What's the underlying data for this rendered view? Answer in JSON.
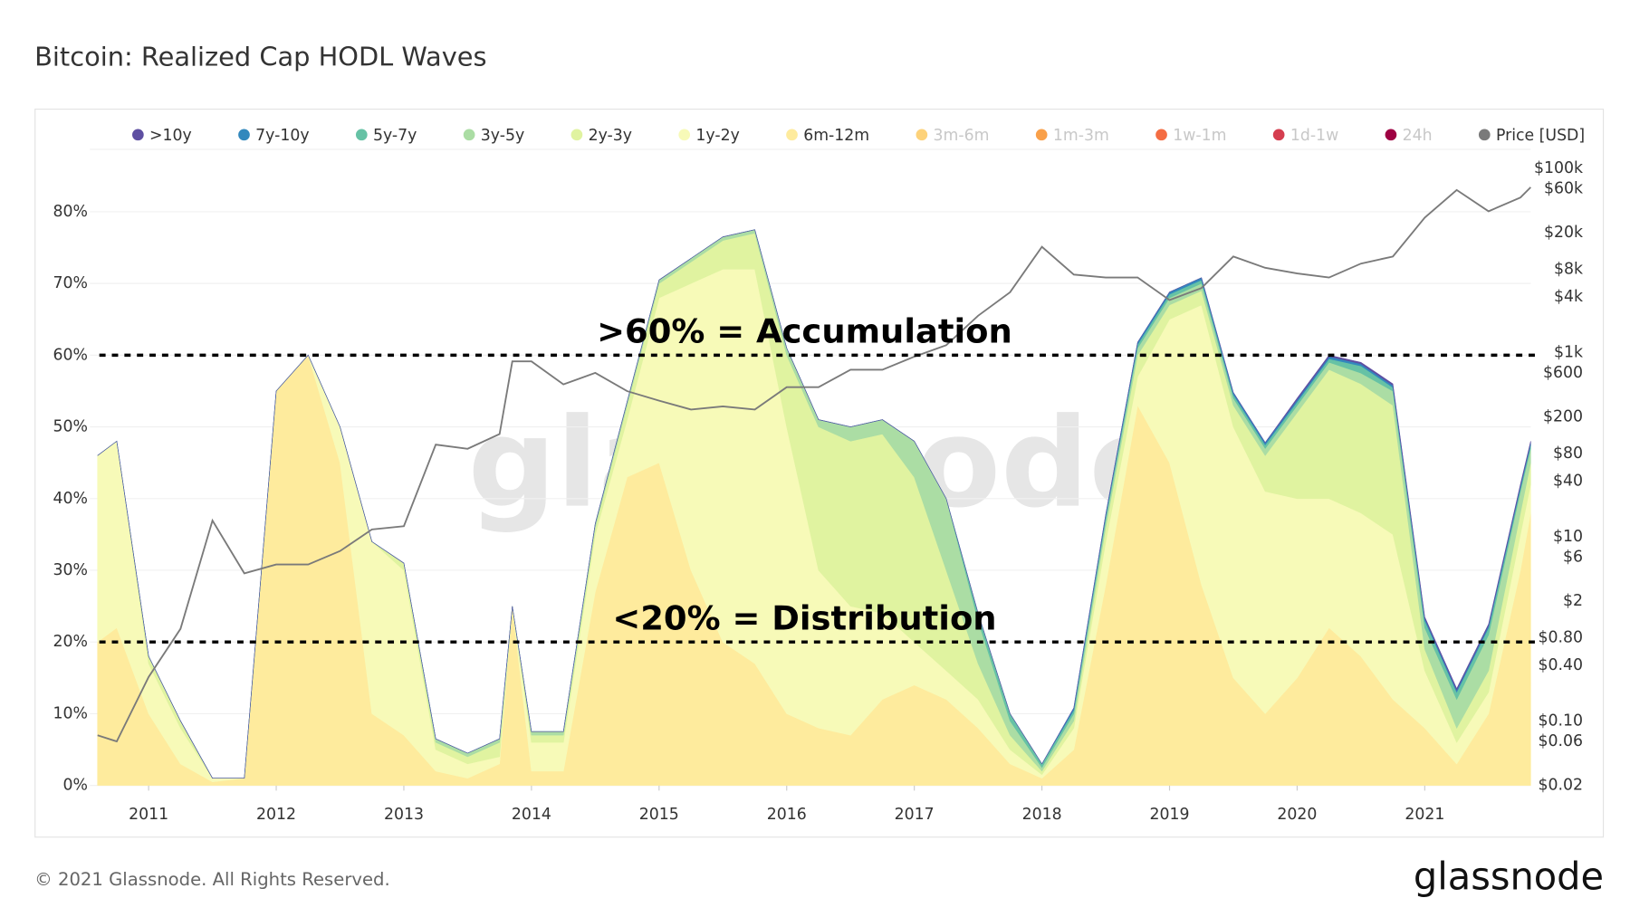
{
  "chart_data": {
    "type": "stacked-area",
    "title": "Bitcoin: Realized Cap HODL Waves",
    "watermark": "glassnode",
    "footer": "© 2021 Glassnode. All Rights Reserved.",
    "logo": "glassnode",
    "x": [
      2010.6,
      2010.75,
      2011,
      2011.25,
      2011.5,
      2011.75,
      2012,
      2012.25,
      2012.5,
      2012.75,
      2013,
      2013.25,
      2013.5,
      2013.75,
      2013.85,
      2014,
      2014.25,
      2014.5,
      2014.75,
      2015,
      2015.25,
      2015.5,
      2015.75,
      2016,
      2016.25,
      2016.5,
      2016.75,
      2017,
      2017.25,
      2017.5,
      2017.75,
      2018,
      2018.25,
      2018.5,
      2018.75,
      2019,
      2019.25,
      2019.5,
      2019.75,
      2020,
      2020.25,
      2020.5,
      2020.75,
      2021,
      2021.25,
      2021.5,
      2021.75,
      2021.83
    ],
    "xlim": [
      2010.54,
      2021.83
    ],
    "xticks": [
      2011,
      2012,
      2013,
      2014,
      2015,
      2016,
      2017,
      2018,
      2019,
      2020,
      2021
    ],
    "ylim": [
      0,
      88.7
    ],
    "yticks": [
      {
        "value": 0,
        "label": "0%"
      },
      {
        "value": 10,
        "label": "10%"
      },
      {
        "value": 20,
        "label": "20%"
      },
      {
        "value": 30,
        "label": "30%"
      },
      {
        "value": 40,
        "label": "40%"
      },
      {
        "value": 50,
        "label": "50%"
      },
      {
        "value": 60,
        "label": "60%"
      },
      {
        "value": 70,
        "label": "70%"
      },
      {
        "value": 80,
        "label": "80%"
      }
    ],
    "y2lim": [
      0.02,
      160000
    ],
    "y2log": true,
    "y2ticks": [
      {
        "value": 100000,
        "label": "$100k"
      },
      {
        "value": 60000,
        "label": "$60k"
      },
      {
        "value": 20000,
        "label": "$20k"
      },
      {
        "value": 8000,
        "label": "$8k"
      },
      {
        "value": 4000,
        "label": "$4k"
      },
      {
        "value": 1000,
        "label": "$1k"
      },
      {
        "value": 600,
        "label": "$600"
      },
      {
        "value": 200,
        "label": "$200"
      },
      {
        "value": 80,
        "label": "$80"
      },
      {
        "value": 40,
        "label": "$40"
      },
      {
        "value": 10,
        "label": "$10"
      },
      {
        "value": 6,
        "label": "$6"
      },
      {
        "value": 2,
        "label": "$2"
      },
      {
        "value": 0.8,
        "label": "$0.80"
      },
      {
        "value": 0.4,
        "label": "$0.40"
      },
      {
        "value": 0.1,
        "label": "$0.10"
      },
      {
        "value": 0.06,
        "label": "$0.06"
      },
      {
        "value": 0.02,
        "label": "$0.02"
      }
    ],
    "grid": true,
    "annotations": [
      {
        "text": ">60% = Accumulation",
        "value": 60
      },
      {
        "text": "<20% = Distribution",
        "value": 20
      }
    ],
    "series": [
      {
        "name": ">10y",
        "color": "#5e4fa2",
        "visible": true,
        "values": [
          0,
          0,
          0,
          0,
          0,
          0,
          0,
          0,
          0,
          0,
          0,
          0,
          0,
          0,
          0,
          0,
          0,
          0,
          0,
          0,
          0,
          0,
          0,
          0,
          0,
          0,
          0,
          0,
          0,
          0,
          0,
          0,
          0,
          0,
          0,
          0,
          0,
          0,
          0,
          0.2,
          0.2,
          0.2,
          0.2,
          0.2,
          0.2,
          0.2,
          0.2,
          0.2
        ]
      },
      {
        "name": "7y-10y",
        "color": "#3288bd",
        "visible": true,
        "values": [
          0,
          0,
          0,
          0,
          0,
          0,
          0,
          0,
          0,
          0,
          0,
          0,
          0,
          0,
          0,
          0,
          0,
          0,
          0,
          0,
          0,
          0,
          0,
          0,
          0,
          0,
          0,
          0,
          0,
          0,
          0,
          0,
          0.3,
          0.3,
          0.3,
          0.3,
          0.3,
          0.3,
          0.3,
          0.3,
          0.3,
          0.3,
          0.3,
          0.3,
          0.3,
          0.3,
          0.3,
          0.3
        ]
      },
      {
        "name": "5y-7y",
        "color": "#66c2a5",
        "visible": true,
        "values": [
          0,
          0,
          0,
          0,
          0,
          0,
          0,
          0,
          0,
          0,
          0,
          0,
          0,
          0,
          0,
          0,
          0,
          0,
          0,
          0,
          0,
          0,
          0,
          0,
          0,
          0,
          0,
          0,
          0,
          1,
          1,
          0.5,
          0.5,
          0.5,
          0.5,
          0.5,
          0.5,
          0.5,
          0.5,
          0.5,
          0.5,
          1,
          0.5,
          1,
          1,
          1,
          0.5,
          0.5
        ]
      },
      {
        "name": "3y-5y",
        "color": "#abdda4",
        "visible": true,
        "values": [
          0,
          0,
          0,
          0,
          0,
          0,
          0,
          0,
          0,
          0,
          0,
          0.5,
          0.5,
          0.5,
          0,
          0.5,
          0.5,
          0.5,
          0.5,
          0.5,
          0.5,
          0.5,
          0.5,
          1,
          1,
          2,
          2,
          5,
          10,
          6,
          2,
          0.5,
          1,
          1,
          1,
          1,
          1,
          1,
          1,
          1,
          1,
          1.5,
          2,
          3,
          4,
          5,
          3,
          2
        ]
      },
      {
        "name": "2y-3y",
        "color": "#e0f3a0",
        "visible": true,
        "values": [
          0,
          0,
          1,
          1,
          0,
          0,
          0,
          0,
          0,
          0,
          1,
          1,
          1,
          2,
          0,
          1,
          1,
          1,
          2,
          2,
          3,
          4,
          5,
          10,
          20,
          23,
          25,
          23,
          14,
          5,
          2,
          0.5,
          1,
          2,
          3,
          2,
          2,
          3,
          5,
          12,
          18,
          18,
          18,
          3,
          2,
          3,
          3,
          3
        ]
      },
      {
        "name": "1y-2y",
        "color": "#f7fab8",
        "visible": true,
        "values": [
          26,
          26,
          7,
          5,
          0.5,
          0,
          0,
          0,
          5,
          24,
          23,
          3,
          2,
          1,
          0,
          4,
          4,
          8,
          8,
          23,
          40,
          52,
          55,
          40,
          22,
          18,
          12,
          6,
          4,
          4,
          2,
          0.5,
          3,
          6,
          4,
          20,
          39,
          35,
          31,
          25,
          18,
          20,
          23,
          8,
          3,
          3,
          5,
          4
        ]
      },
      {
        "name": "6m-12m",
        "color": "#feeb9d",
        "visible": true,
        "values": [
          20,
          22,
          10,
          3,
          0.5,
          1,
          55,
          60,
          45,
          10,
          7,
          2,
          1,
          3,
          25,
          2,
          2,
          27,
          43,
          45,
          30,
          20,
          17,
          10,
          8,
          7,
          12,
          14,
          12,
          8,
          3,
          1,
          5,
          28,
          53,
          45,
          28,
          15,
          10,
          15,
          22,
          18,
          12,
          8,
          3,
          10,
          30,
          38
        ]
      },
      {
        "name": "3m-6m",
        "color": "#fdd27a",
        "visible": false,
        "values": [
          null,
          null,
          null,
          null,
          null,
          null,
          null,
          null,
          null,
          null,
          null,
          null,
          null,
          null,
          null,
          null,
          null,
          null,
          null,
          null,
          null,
          null,
          null,
          null,
          null,
          null,
          null,
          null,
          null,
          null,
          null,
          null,
          null,
          null,
          null,
          null,
          null,
          null,
          null,
          null,
          null,
          null,
          null,
          null,
          null,
          null,
          null,
          null
        ]
      },
      {
        "name": "1m-3m",
        "color": "#f9a04a",
        "visible": false,
        "values": [
          null,
          null,
          null,
          null,
          null,
          null,
          null,
          null,
          null,
          null,
          null,
          null,
          null,
          null,
          null,
          null,
          null,
          null,
          null,
          null,
          null,
          null,
          null,
          null,
          null,
          null,
          null,
          null,
          null,
          null,
          null,
          null,
          null,
          null,
          null,
          null,
          null,
          null,
          null,
          null,
          null,
          null,
          null,
          null,
          null,
          null,
          null,
          null
        ]
      },
      {
        "name": "1w-1m",
        "color": "#f46d43",
        "visible": false,
        "values": [
          null,
          null,
          null,
          null,
          null,
          null,
          null,
          null,
          null,
          null,
          null,
          null,
          null,
          null,
          null,
          null,
          null,
          null,
          null,
          null,
          null,
          null,
          null,
          null,
          null,
          null,
          null,
          null,
          null,
          null,
          null,
          null,
          null,
          null,
          null,
          null,
          null,
          null,
          null,
          null,
          null,
          null,
          null,
          null,
          null,
          null,
          null,
          null
        ]
      },
      {
        "name": "1d-1w",
        "color": "#d53e4f",
        "visible": false,
        "values": [
          null,
          null,
          null,
          null,
          null,
          null,
          null,
          null,
          null,
          null,
          null,
          null,
          null,
          null,
          null,
          null,
          null,
          null,
          null,
          null,
          null,
          null,
          null,
          null,
          null,
          null,
          null,
          null,
          null,
          null,
          null,
          null,
          null,
          null,
          null,
          null,
          null,
          null,
          null,
          null,
          null,
          null,
          null,
          null,
          null,
          null,
          null,
          null
        ]
      },
      {
        "name": "24h",
        "color": "#9e0142",
        "visible": false,
        "values": [
          null,
          null,
          null,
          null,
          null,
          null,
          null,
          null,
          null,
          null,
          null,
          null,
          null,
          null,
          null,
          null,
          null,
          null,
          null,
          null,
          null,
          null,
          null,
          null,
          null,
          null,
          null,
          null,
          null,
          null,
          null,
          null,
          null,
          null,
          null,
          null,
          null,
          null,
          null,
          null,
          null,
          null,
          null,
          null,
          null,
          null,
          null,
          null
        ]
      },
      {
        "name": "Price [USD]",
        "color": "#7a7a7a",
        "visible": true,
        "axis": "y2",
        "values": [
          0.07,
          0.06,
          0.3,
          1,
          15,
          4,
          5,
          5,
          7,
          12,
          13,
          100,
          90,
          130,
          800,
          800,
          450,
          600,
          380,
          300,
          240,
          260,
          240,
          420,
          420,
          650,
          650,
          900,
          1200,
          2500,
          4500,
          14000,
          7000,
          6500,
          6500,
          3700,
          5000,
          11000,
          8300,
          7200,
          6500,
          9200,
          11000,
          29000,
          58000,
          34000,
          48000,
          62000
        ]
      }
    ]
  }
}
